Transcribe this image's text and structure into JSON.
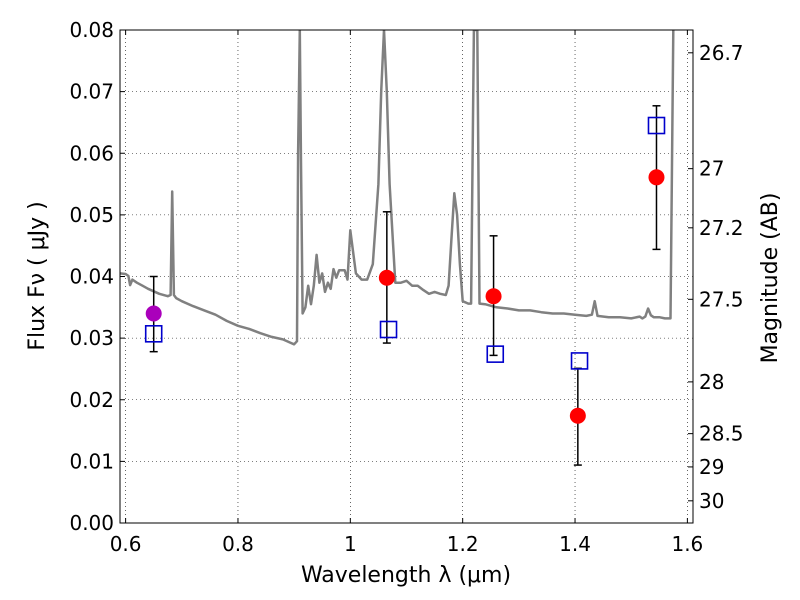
{
  "chart_data": {
    "type": "scatter",
    "xlabel": "Wavelength  λ (μm)",
    "ylabel": "Flux  Fν  ( μJy )",
    "y2label": "Magnitude (AB)",
    "xlim": [
      0.59,
      1.61
    ],
    "ylim": [
      0.0,
      0.08
    ],
    "x_ticks": [
      0.6,
      0.8,
      1.0,
      1.2,
      1.4,
      1.6
    ],
    "x_tick_labels": [
      "0.6",
      "0.8",
      "1",
      "1.2",
      "1.4",
      "1.6"
    ],
    "y_ticks": [
      0.0,
      0.01,
      0.02,
      0.03,
      0.04,
      0.05,
      0.06,
      0.07,
      0.08
    ],
    "y_tick_labels": [
      "0.00",
      "0.01",
      "0.02",
      "0.03",
      "0.04",
      "0.05",
      "0.06",
      "0.07",
      "0.08"
    ],
    "y2_ticks": [
      {
        "label": "26.7",
        "flux": 0.0763
      },
      {
        "label": "27",
        "flux": 0.0575
      },
      {
        "label": "27.2",
        "flux": 0.0479
      },
      {
        "label": "27.5",
        "flux": 0.0363
      },
      {
        "label": "28",
        "flux": 0.0229
      },
      {
        "label": "28.5",
        "flux": 0.0145
      },
      {
        "label": "29",
        "flux": 0.0091
      },
      {
        "label": "30",
        "flux": 0.0036
      }
    ],
    "grid": true,
    "colors": {
      "model": "#808080",
      "observed": "#ff0000",
      "observed_violet": "#aa00bb",
      "model_box": "#0000cc",
      "errorbar": "#000000"
    },
    "series": [
      {
        "kind": "line",
        "points": [
          [
            0.59,
            0.0405
          ],
          [
            0.6,
            0.0404
          ],
          [
            0.605,
            0.0401
          ],
          [
            0.608,
            0.0386
          ],
          [
            0.612,
            0.0395
          ],
          [
            0.62,
            0.039
          ],
          [
            0.63,
            0.0385
          ],
          [
            0.64,
            0.038
          ],
          [
            0.66,
            0.0372
          ],
          [
            0.675,
            0.0368
          ],
          [
            0.68,
            0.037
          ],
          [
            0.683,
            0.0538
          ],
          [
            0.686,
            0.037
          ],
          [
            0.69,
            0.0365
          ],
          [
            0.7,
            0.036
          ],
          [
            0.72,
            0.0352
          ],
          [
            0.74,
            0.0345
          ],
          [
            0.76,
            0.0338
          ],
          [
            0.78,
            0.0328
          ],
          [
            0.8,
            0.032
          ],
          [
            0.82,
            0.0315
          ],
          [
            0.84,
            0.0308
          ],
          [
            0.86,
            0.0302
          ],
          [
            0.88,
            0.0298
          ],
          [
            0.895,
            0.0292
          ],
          [
            0.9,
            0.029
          ],
          [
            0.905,
            0.0295
          ],
          [
            0.907,
            0.06
          ],
          [
            0.91,
            0.08
          ],
          [
            0.912,
            0.06
          ],
          [
            0.915,
            0.034
          ],
          [
            0.92,
            0.035
          ],
          [
            0.925,
            0.0385
          ],
          [
            0.93,
            0.0355
          ],
          [
            0.935,
            0.0385
          ],
          [
            0.94,
            0.0435
          ],
          [
            0.945,
            0.039
          ],
          [
            0.95,
            0.0405
          ],
          [
            0.955,
            0.0375
          ],
          [
            0.96,
            0.039
          ],
          [
            0.965,
            0.038
          ],
          [
            0.97,
            0.0412
          ],
          [
            0.975,
            0.0398
          ],
          [
            0.98,
            0.041
          ],
          [
            0.99,
            0.041
          ],
          [
            0.995,
            0.0395
          ],
          [
            1.0,
            0.0475
          ],
          [
            1.005,
            0.044
          ],
          [
            1.01,
            0.0405
          ],
          [
            1.02,
            0.0395
          ],
          [
            1.03,
            0.0395
          ],
          [
            1.04,
            0.042
          ],
          [
            1.05,
            0.055
          ],
          [
            1.055,
            0.07
          ],
          [
            1.06,
            0.08
          ],
          [
            1.065,
            0.07
          ],
          [
            1.07,
            0.055
          ],
          [
            1.08,
            0.039
          ],
          [
            1.09,
            0.039
          ],
          [
            1.1,
            0.0393
          ],
          [
            1.11,
            0.0385
          ],
          [
            1.12,
            0.0385
          ],
          [
            1.13,
            0.0378
          ],
          [
            1.14,
            0.0372
          ],
          [
            1.15,
            0.0375
          ],
          [
            1.16,
            0.0372
          ],
          [
            1.17,
            0.037
          ],
          [
            1.175,
            0.0385
          ],
          [
            1.18,
            0.046
          ],
          [
            1.185,
            0.0535
          ],
          [
            1.19,
            0.05
          ],
          [
            1.195,
            0.042
          ],
          [
            1.2,
            0.036
          ],
          [
            1.21,
            0.0356
          ],
          [
            1.215,
            0.0356
          ],
          [
            1.22,
            0.08
          ],
          [
            1.226,
            0.08
          ],
          [
            1.23,
            0.0356
          ],
          [
            1.24,
            0.0355
          ],
          [
            1.26,
            0.035
          ],
          [
            1.28,
            0.0348
          ],
          [
            1.3,
            0.0345
          ],
          [
            1.32,
            0.0345
          ],
          [
            1.34,
            0.0342
          ],
          [
            1.36,
            0.034
          ],
          [
            1.38,
            0.034
          ],
          [
            1.4,
            0.0338
          ],
          [
            1.42,
            0.0336
          ],
          [
            1.43,
            0.0338
          ],
          [
            1.435,
            0.036
          ],
          [
            1.44,
            0.0336
          ],
          [
            1.46,
            0.0334
          ],
          [
            1.48,
            0.0334
          ],
          [
            1.5,
            0.0332
          ],
          [
            1.515,
            0.0335
          ],
          [
            1.52,
            0.0332
          ],
          [
            1.525,
            0.0335
          ],
          [
            1.53,
            0.0348
          ],
          [
            1.535,
            0.0337
          ],
          [
            1.54,
            0.0334
          ],
          [
            1.55,
            0.0334
          ],
          [
            1.56,
            0.0332
          ],
          [
            1.565,
            0.0332
          ],
          [
            1.57,
            0.0332
          ],
          [
            1.575,
            0.08
          ]
        ]
      },
      {
        "kind": "points",
        "marker": "circle",
        "points": [
          {
            "x": 0.65,
            "y": 0.034,
            "err_lo": 0.0062,
            "err_hi": 0.006,
            "color": "observed_violet"
          },
          {
            "x": 1.065,
            "y": 0.0398,
            "err_lo": 0.0106,
            "err_hi": 0.0107,
            "color": "observed"
          },
          {
            "x": 1.255,
            "y": 0.0368,
            "err_lo": 0.0096,
            "err_hi": 0.0098,
            "color": "observed"
          },
          {
            "x": 1.405,
            "y": 0.0174,
            "err_lo": 0.008,
            "err_hi": 0.0077,
            "color": "observed"
          },
          {
            "x": 1.545,
            "y": 0.0561,
            "err_lo": 0.0117,
            "err_hi": 0.0116,
            "color": "observed"
          }
        ]
      },
      {
        "kind": "points",
        "marker": "square",
        "points": [
          {
            "x": 0.65,
            "y": 0.0307
          },
          {
            "x": 1.068,
            "y": 0.0314
          },
          {
            "x": 1.258,
            "y": 0.0274
          },
          {
            "x": 1.408,
            "y": 0.0263
          },
          {
            "x": 1.545,
            "y": 0.0645
          }
        ]
      }
    ]
  }
}
